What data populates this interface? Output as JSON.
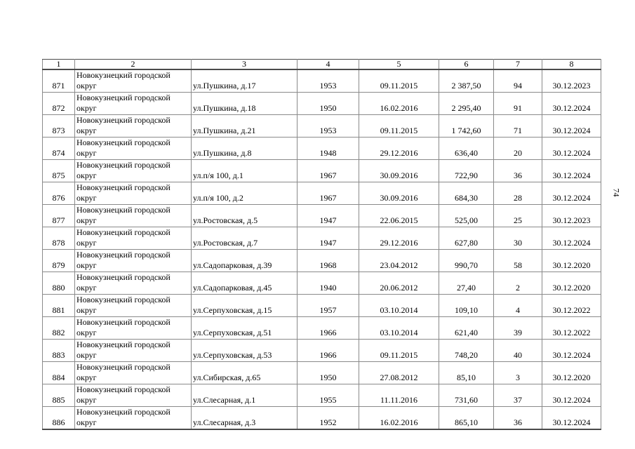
{
  "page": {
    "page_number": "74"
  },
  "table": {
    "headers": [
      "1",
      "2",
      "3",
      "4",
      "5",
      "6",
      "7",
      "8"
    ],
    "rows": [
      {
        "num": "871",
        "district": "Новокузнецкий городской округ",
        "address": "ул.Пушкина, д.17",
        "year": "1953",
        "date": "09.11.2015",
        "area": "2 387,50",
        "count": "94",
        "deadline": "30.12.2023"
      },
      {
        "num": "872",
        "district": "Новокузнецкий городской округ",
        "address": "ул.Пушкина, д.18",
        "year": "1950",
        "date": "16.02.2016",
        "area": "2 295,40",
        "count": "91",
        "deadline": "30.12.2024"
      },
      {
        "num": "873",
        "district": "Новокузнецкий городской округ",
        "address": "ул.Пушкина, д.21",
        "year": "1953",
        "date": "09.11.2015",
        "area": "1 742,60",
        "count": "71",
        "deadline": "30.12.2024"
      },
      {
        "num": "874",
        "district": "Новокузнецкий городской округ",
        "address": "ул.Пушкина, д.8",
        "year": "1948",
        "date": "29.12.2016",
        "area": "636,40",
        "count": "20",
        "deadline": "30.12.2024"
      },
      {
        "num": "875",
        "district": "Новокузнецкий городской округ",
        "address": "ул.п/я 100, д.1",
        "year": "1967",
        "date": "30.09.2016",
        "area": "722,90",
        "count": "36",
        "deadline": "30.12.2024"
      },
      {
        "num": "876",
        "district": "Новокузнецкий городской округ",
        "address": "ул.п/я 100, д.2",
        "year": "1967",
        "date": "30.09.2016",
        "area": "684,30",
        "count": "28",
        "deadline": "30.12.2024"
      },
      {
        "num": "877",
        "district": "Новокузнецкий городской округ",
        "address": "ул.Ростовская, д.5",
        "year": "1947",
        "date": "22.06.2015",
        "area": "525,00",
        "count": "25",
        "deadline": "30.12.2023"
      },
      {
        "num": "878",
        "district": "Новокузнецкий городской округ",
        "address": "ул.Ростовская, д.7",
        "year": "1947",
        "date": "29.12.2016",
        "area": "627,80",
        "count": "30",
        "deadline": "30.12.2024"
      },
      {
        "num": "879",
        "district": "Новокузнецкий городской округ",
        "address": "ул.Садопарковая, д.39",
        "year": "1968",
        "date": "23.04.2012",
        "area": "990,70",
        "count": "58",
        "deadline": "30.12.2020"
      },
      {
        "num": "880",
        "district": "Новокузнецкий городской округ",
        "address": "ул.Садопарковая, д.45",
        "year": "1940",
        "date": "20.06.2012",
        "area": "27,40",
        "count": "2",
        "deadline": "30.12.2020"
      },
      {
        "num": "881",
        "district": "Новокузнецкий городской округ",
        "address": "ул.Серпуховская, д.15",
        "year": "1957",
        "date": "03.10.2014",
        "area": "109,10",
        "count": "4",
        "deadline": "30.12.2022"
      },
      {
        "num": "882",
        "district": "Новокузнецкий городской округ",
        "address": "ул.Серпуховская, д.51",
        "year": "1966",
        "date": "03.10.2014",
        "area": "621,40",
        "count": "39",
        "deadline": "30.12.2022"
      },
      {
        "num": "883",
        "district": "Новокузнецкий городской округ",
        "address": "ул.Серпуховская, д.53",
        "year": "1966",
        "date": "09.11.2015",
        "area": "748,20",
        "count": "40",
        "deadline": "30.12.2024"
      },
      {
        "num": "884",
        "district": "Новокузнецкий городской округ",
        "address": "ул.Сибирская, д.65",
        "year": "1950",
        "date": "27.08.2012",
        "area": "85,10",
        "count": "3",
        "deadline": "30.12.2020"
      },
      {
        "num": "885",
        "district": "Новокузнецкий городской округ",
        "address": "ул.Слесарная, д.1",
        "year": "1955",
        "date": "11.11.2016",
        "area": "731,60",
        "count": "37",
        "deadline": "30.12.2024"
      },
      {
        "num": "886",
        "district": "Новокузнецкий городской округ",
        "address": "ул.Слесарная, д.3",
        "year": "1952",
        "date": "16.02.2016",
        "area": "865,10",
        "count": "36",
        "deadline": "30.12.2024"
      }
    ]
  }
}
